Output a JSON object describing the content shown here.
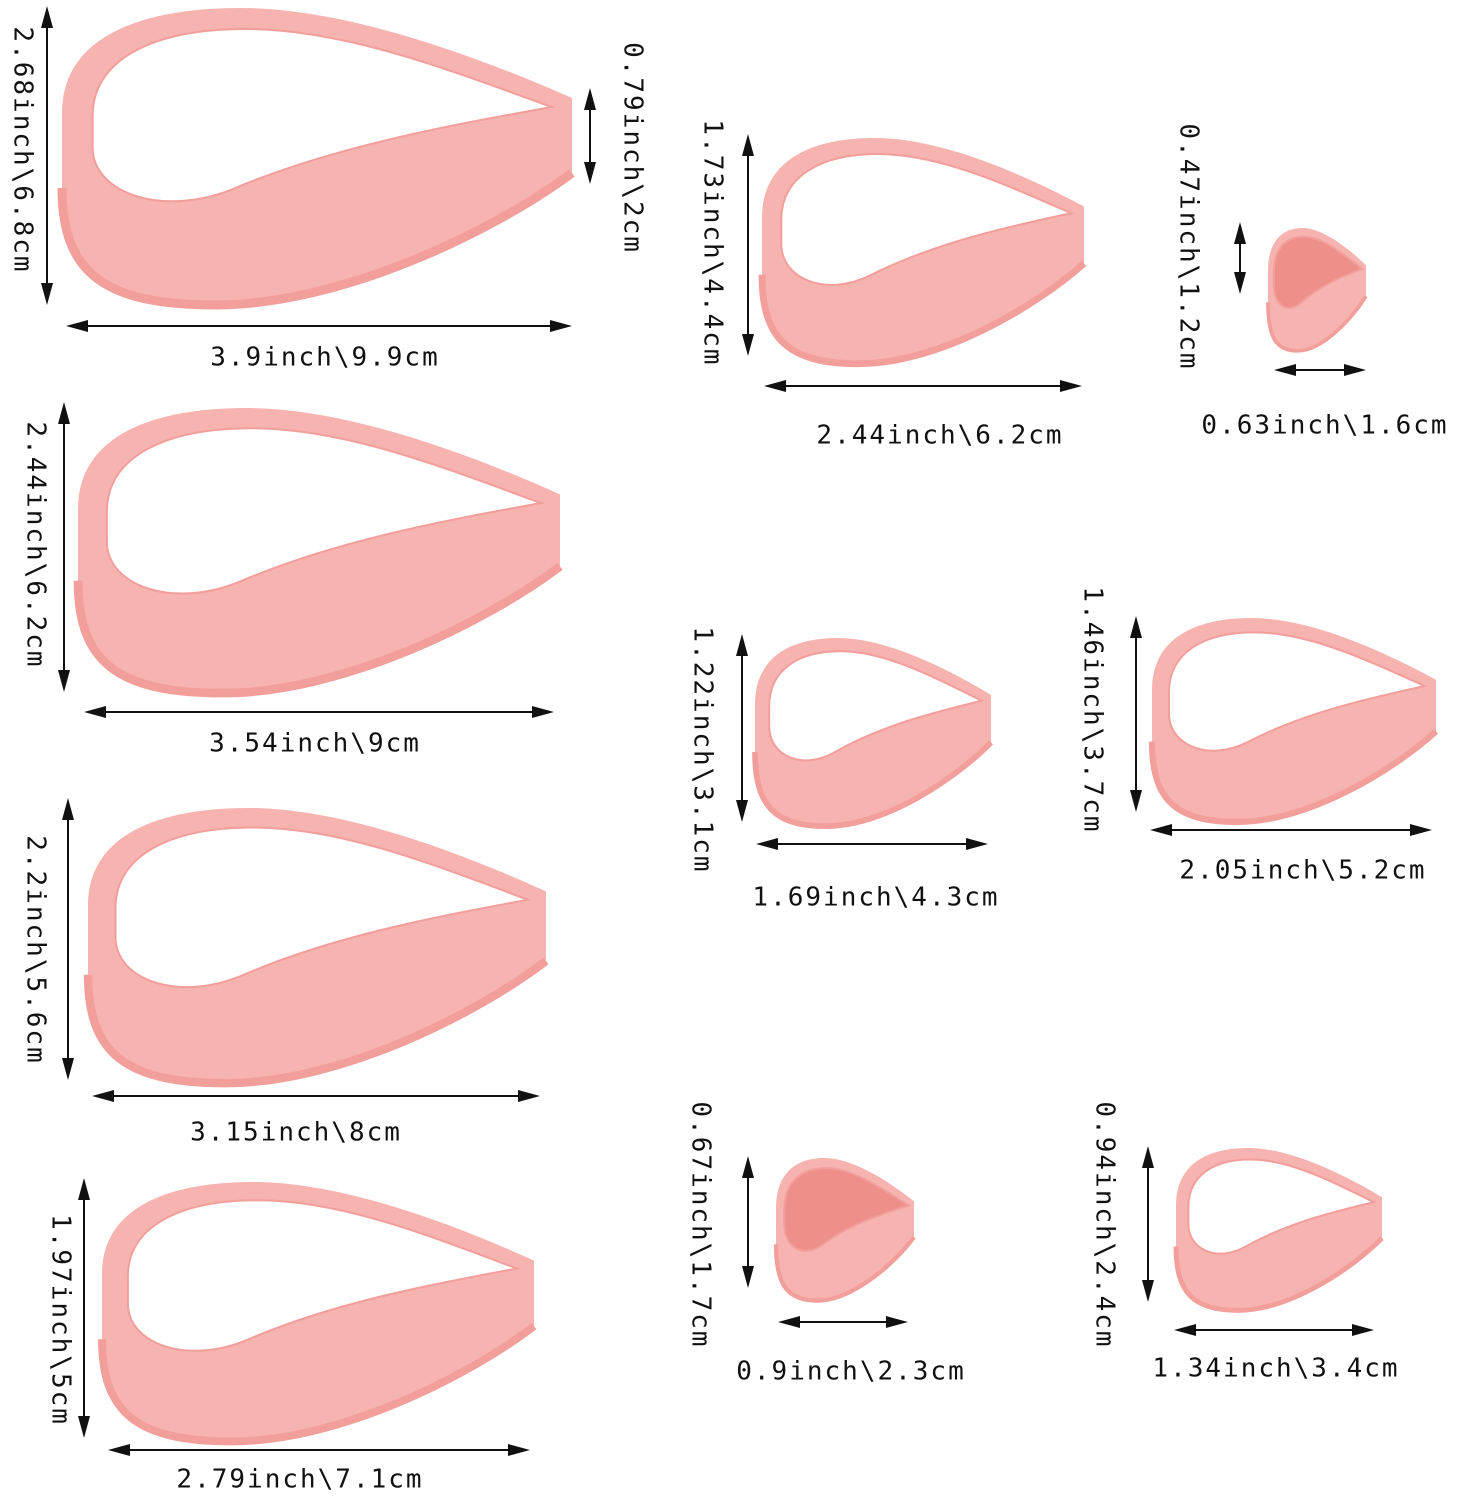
{
  "product": {
    "color": "#f6b3b0",
    "color_rim": "#f29e9a",
    "color_inner": "#ee8f89"
  },
  "cutters": [
    {
      "width_label": "3.9inch\\9.9cm",
      "height_label": "2.68inch\\6.8cm"
    },
    {
      "width_label": "3.54inch\\9cm",
      "height_label": "2.44inch\\6.2cm"
    },
    {
      "width_label": "3.15inch\\8cm",
      "height_label": "2.2inch\\5.6cm"
    },
    {
      "width_label": "2.79inch\\7.1cm",
      "height_label": "1.97inch\\5cm"
    },
    {
      "width_label": "2.44inch\\6.2cm",
      "height_label": "1.73inch\\4.4cm"
    },
    {
      "width_label": "0.63inch\\1.6cm",
      "height_label": "0.47inch\\1.2cm"
    },
    {
      "width_label": "1.69inch\\4.3cm",
      "height_label": "1.22inch\\3.1cm"
    },
    {
      "width_label": "2.05inch\\5.2cm",
      "height_label": "1.46inch\\3.7cm"
    },
    {
      "width_label": "0.9inch\\2.3cm",
      "height_label": "0.67inch\\1.7cm"
    },
    {
      "width_label": "1.34inch\\3.4cm",
      "height_label": "0.94inch\\2.4cm"
    }
  ],
  "depth_label": "0.79inch\\2cm"
}
